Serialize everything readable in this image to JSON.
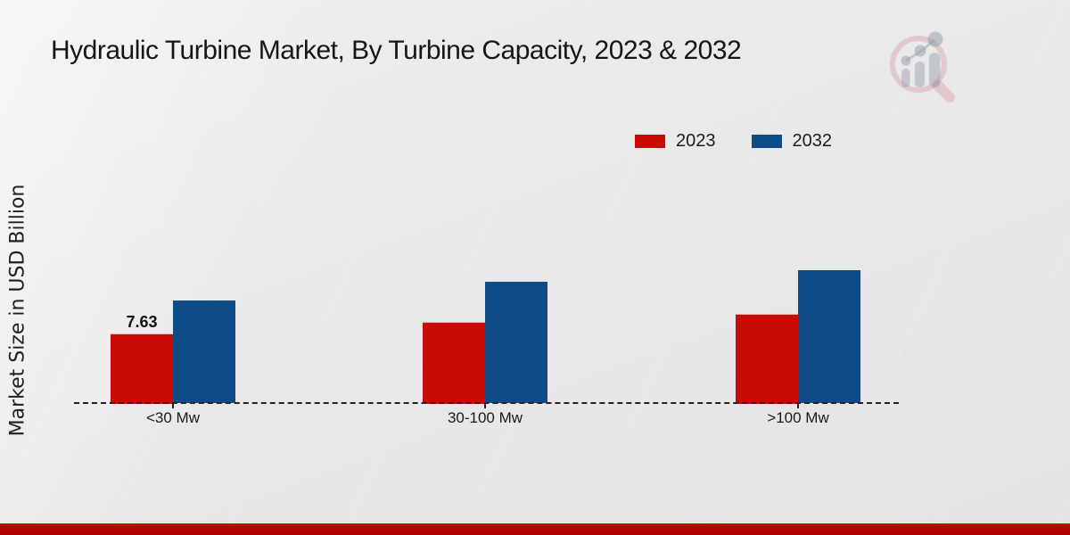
{
  "title": "Hydraulic Turbine Market, By Turbine Capacity, 2023 & 2032",
  "y_axis_label": "Market Size in USD Billion",
  "legend": {
    "items": [
      {
        "label": "2023",
        "color": "#c90b05"
      },
      {
        "label": "2032",
        "color": "#0e4c87"
      }
    ]
  },
  "colors": {
    "series_2023": "#c90b05",
    "series_2032": "#0e4c87",
    "bottom_stripe": "#b50400",
    "axis_line": "#222222",
    "background": "#e9e9e9",
    "title_text": "#161616"
  },
  "brand_logo": "magnifier-bar-chart-watermark-icon",
  "chart_data": {
    "type": "bar",
    "categories": [
      "<30 Mw",
      "30-100 Mw",
      ">100 Mw"
    ],
    "series": [
      {
        "name": "2023",
        "color": "#c90b05",
        "values": [
          7.63,
          8.9,
          9.8
        ],
        "data_labels": [
          "7.63",
          "",
          ""
        ]
      },
      {
        "name": "2032",
        "color": "#0e4c87",
        "values": [
          11.2,
          13.3,
          14.5
        ],
        "data_labels": [
          "",
          "",
          ""
        ]
      }
    ],
    "title": "Hydraulic Turbine Market, By Turbine Capacity, 2023 & 2032",
    "xlabel": "",
    "ylabel": "Market Size in USD Billion",
    "ylim": [
      0,
      16
    ],
    "grid": false,
    "legend_position": "top-right",
    "baseline_style": "dashed",
    "bar_value_label_note": "only first 2023 bar is labeled"
  }
}
